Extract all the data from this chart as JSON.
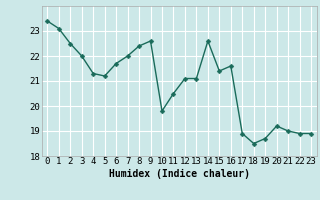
{
  "x": [
    0,
    1,
    2,
    3,
    4,
    5,
    6,
    7,
    8,
    9,
    10,
    11,
    12,
    13,
    14,
    15,
    16,
    17,
    18,
    19,
    20,
    21,
    22,
    23
  ],
  "y": [
    23.4,
    23.1,
    22.5,
    22.0,
    21.3,
    21.2,
    21.7,
    22.0,
    22.4,
    22.6,
    19.8,
    20.5,
    21.1,
    21.1,
    22.6,
    21.4,
    21.6,
    18.9,
    18.5,
    18.7,
    19.2,
    19.0,
    18.9,
    18.9
  ],
  "line_color": "#1a6b5a",
  "marker": "D",
  "markersize": 2.5,
  "linewidth": 1.0,
  "bg_color": "#cce8e8",
  "grid_color": "#ffffff",
  "xlabel": "Humidex (Indice chaleur)",
  "ylim": [
    18,
    24
  ],
  "xlim": [
    -0.5,
    23.5
  ],
  "yticks": [
    18,
    19,
    20,
    21,
    22,
    23
  ],
  "xticks": [
    0,
    1,
    2,
    3,
    4,
    5,
    6,
    7,
    8,
    9,
    10,
    11,
    12,
    13,
    14,
    15,
    16,
    17,
    18,
    19,
    20,
    21,
    22,
    23
  ],
  "xlabel_fontsize": 7,
  "tick_fontsize": 6.5
}
